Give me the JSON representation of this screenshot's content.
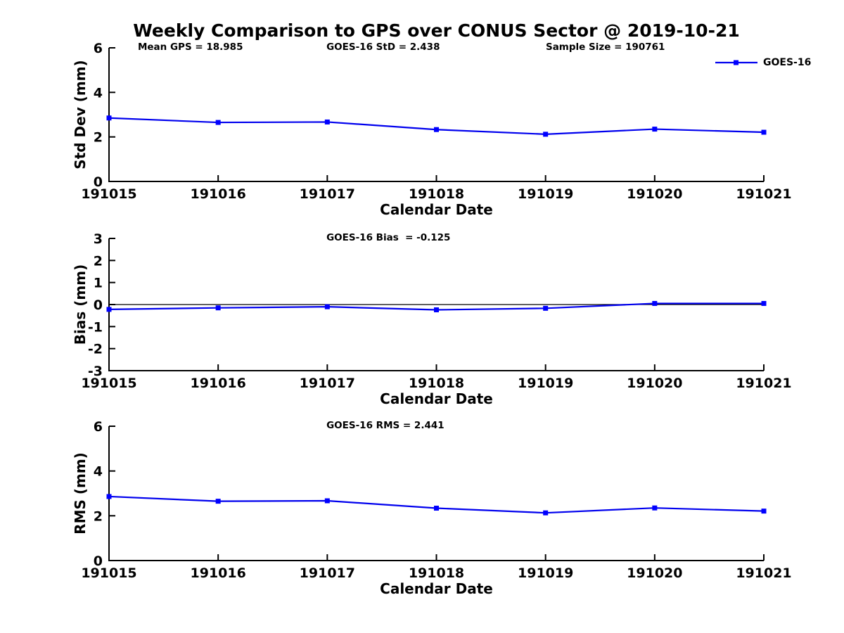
{
  "title": "Weekly Comparison to GPS over CONUS Sector @ 2019-10-21",
  "legend": {
    "label": "GOES-16"
  },
  "colors": {
    "line": "#0000EE",
    "marker": "#0000FF",
    "axis": "#000000",
    "text": "#000000"
  },
  "chart_data": [
    {
      "type": "line",
      "id": "std-dev",
      "x": [
        "191015",
        "191016",
        "191017",
        "191018",
        "191019",
        "191020",
        "191021"
      ],
      "series": [
        {
          "name": "GOES-16",
          "values": [
            2.85,
            2.65,
            2.67,
            2.33,
            2.12,
            2.35,
            2.21
          ]
        }
      ],
      "xlabel": "Calendar Date",
      "ylabel": "Std Dev (mm)",
      "ylim": [
        0,
        6
      ],
      "yticks": [
        0,
        2,
        4,
        6
      ],
      "grid": false,
      "zero_line": false,
      "annotations": [
        "Mean GPS = 18.985",
        "GOES-16 StD = 2.438",
        "Sample Size = 190761"
      ],
      "legend_position": "top-right-outside"
    },
    {
      "type": "line",
      "id": "bias",
      "x": [
        "191015",
        "191016",
        "191017",
        "191018",
        "191019",
        "191020",
        "191021"
      ],
      "series": [
        {
          "name": "GOES-16",
          "values": [
            -0.22,
            -0.15,
            -0.1,
            -0.24,
            -0.17,
            0.05,
            0.05
          ]
        }
      ],
      "xlabel": "Calendar Date",
      "ylabel": "Bias (mm)",
      "ylim": [
        -3,
        3
      ],
      "yticks": [
        -3,
        -2,
        -1,
        0,
        1,
        2,
        3
      ],
      "grid": false,
      "zero_line": true,
      "annotations": [
        "GOES-16 Bias  = -0.125"
      ]
    },
    {
      "type": "line",
      "id": "rms",
      "x": [
        "191015",
        "191016",
        "191017",
        "191018",
        "191019",
        "191020",
        "191021"
      ],
      "series": [
        {
          "name": "GOES-16",
          "values": [
            2.86,
            2.65,
            2.67,
            2.34,
            2.13,
            2.35,
            2.21
          ]
        }
      ],
      "xlabel": "Calendar Date",
      "ylabel": "RMS (mm)",
      "ylim": [
        0,
        6
      ],
      "yticks": [
        0,
        2,
        4,
        6
      ],
      "grid": false,
      "zero_line": false,
      "annotations": [
        "GOES-16 RMS = 2.441"
      ]
    }
  ]
}
